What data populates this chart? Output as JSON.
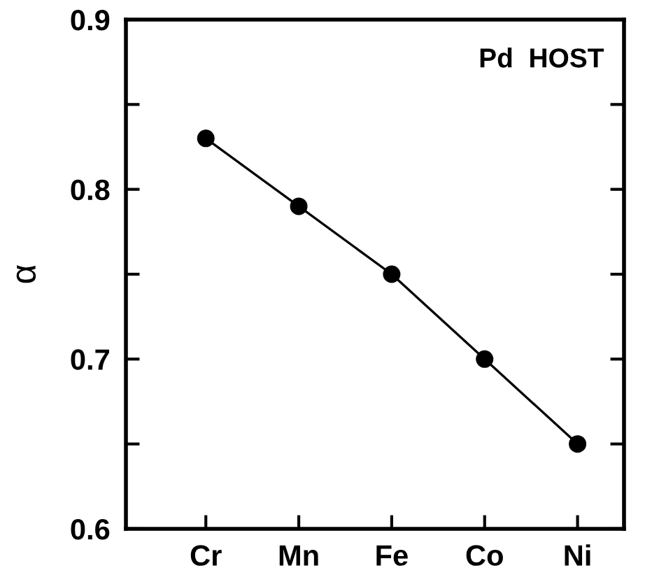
{
  "chart_data": {
    "type": "line",
    "ylabel": "α",
    "annotations": [
      "Pd  HOST"
    ],
    "categories": [
      "Cr",
      "Mn",
      "Fe",
      "Co",
      "Ni"
    ],
    "series": [
      {
        "color": "#000000",
        "values": [
          0.83,
          0.79,
          0.75,
          0.7,
          0.65
        ]
      }
    ],
    "ylim": [
      0.6,
      0.9
    ],
    "yticks": [
      0.6,
      {
        "value": 0.65,
        "label": null
      },
      0.7,
      {
        "value": 0.75,
        "label": null
      },
      0.8,
      {
        "value": 0.85,
        "label": null
      },
      0.9
    ],
    "marker": "circle",
    "line_style": "solid",
    "grid": false,
    "legend": false
  }
}
